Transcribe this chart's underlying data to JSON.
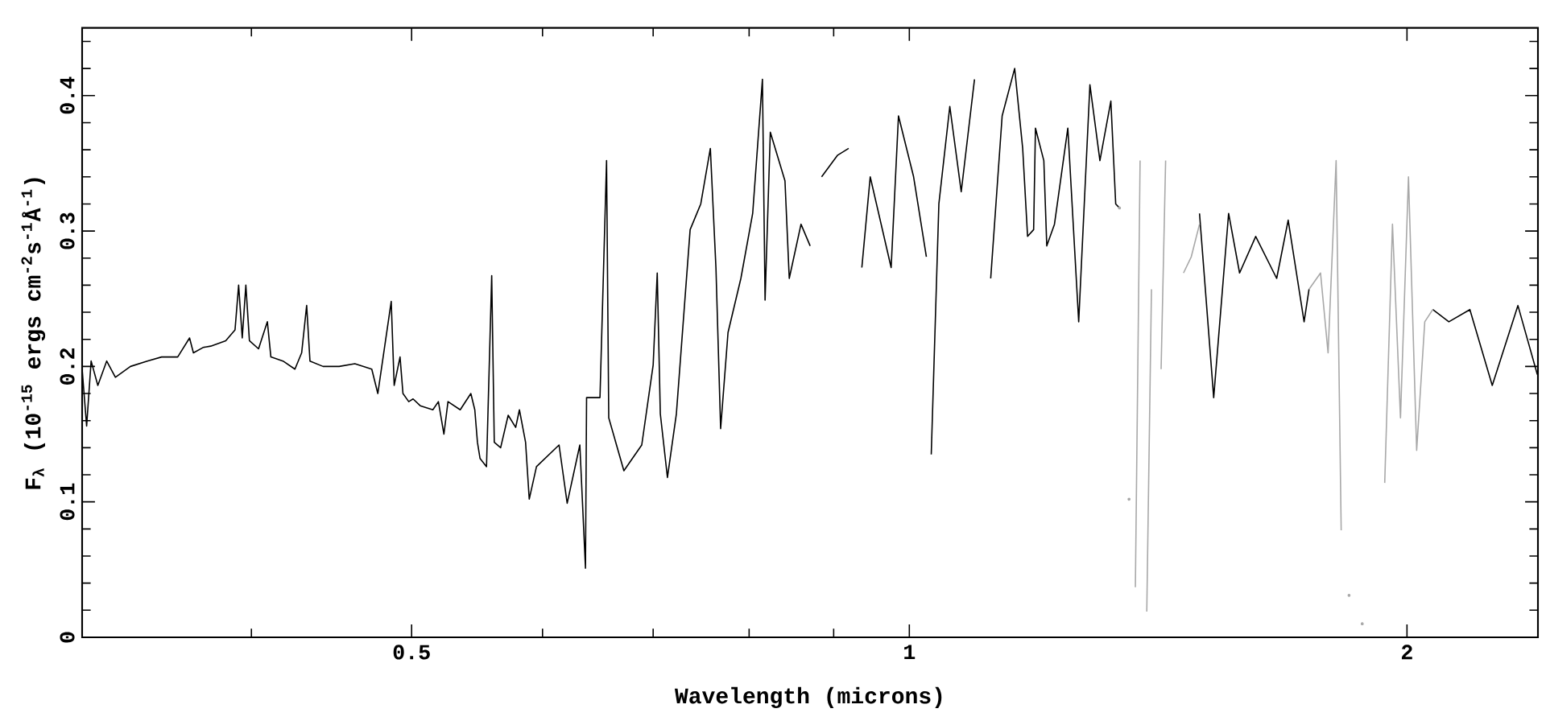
{
  "chart_data": {
    "type": "line",
    "xlabel": "Wavelength (microns)",
    "ylabel": "F$_{λ}$ (10$^{-15}$ ergs cm$^{-2}$s$^{-1}$Å$^{-1}$)",
    "log": "x",
    "xlim": [
      0.316,
      2.4
    ],
    "ylim": [
      0,
      0.45
    ],
    "xticks": [
      {
        "value": 0.4,
        "label": null
      },
      0.5,
      {
        "value": 0.6,
        "label": null
      },
      {
        "value": 0.7,
        "label": null
      },
      {
        "value": 0.8,
        "label": null
      },
      {
        "value": 0.9,
        "label": null
      },
      1,
      2
    ],
    "yticks": [
      0,
      {
        "value": 0.02,
        "label": null
      },
      {
        "value": 0.04,
        "label": null
      },
      {
        "value": 0.06,
        "label": null
      },
      {
        "value": 0.08,
        "label": null
      },
      0.1,
      {
        "value": 0.12,
        "label": null
      },
      {
        "value": 0.14,
        "label": null
      },
      {
        "value": 0.16,
        "label": null
      },
      {
        "value": 0.18,
        "label": null
      },
      0.2,
      {
        "value": 0.22,
        "label": null
      },
      {
        "value": 0.24,
        "label": null
      },
      {
        "value": 0.26,
        "label": null
      },
      {
        "value": 0.28,
        "label": null
      },
      0.3,
      {
        "value": 0.32,
        "label": null
      },
      {
        "value": 0.34,
        "label": null
      },
      {
        "value": 0.36,
        "label": null
      },
      {
        "value": 0.38,
        "label": null
      },
      0.4,
      {
        "value": 0.42,
        "label": null
      },
      {
        "value": 0.44,
        "label": null
      }
    ],
    "series": [
      {
        "color": "#000000",
        "x": [
          0.316,
          0.318,
          0.32,
          0.323,
          0.327,
          0.331,
          0.338,
          0.346,
          0.353,
          0.361,
          0.367,
          0.369,
          0.374,
          0.378,
          0.386,
          0.391,
          0.393,
          0.395,
          0.397,
          0.399,
          0.404,
          0.409,
          0.411,
          0.418,
          0.425,
          0.429,
          0.432,
          0.434,
          0.442,
          0.452,
          0.462,
          0.473,
          0.477,
          0.486,
          0.488,
          0.492,
          0.494,
          0.498,
          0.501,
          0.506,
          0.515,
          0.519,
          0.523,
          0.526,
          0.535,
          0.543,
          0.546,
          0.548,
          0.55,
          0.555,
          0.559,
          0.561,
          0.566,
          0.572,
          0.578,
          0.581,
          0.586,
          0.589,
          0.595,
          0.614,
          0.621,
          0.632,
          0.637,
          0.638,
          0.65,
          0.656,
          0.658,
          0.672,
          0.689,
          0.7,
          0.704,
          0.707,
          0.714,
          0.723,
          0.737,
          0.748,
          0.758,
          0.764,
          0.769,
          0.777,
          0.791,
          0.804,
          0.815,
          0.818,
          0.824,
          0.841,
          0.846,
          0.86,
          0.871,
          0.881,
          0.885,
          0.905,
          0.919,
          0.932,
          0.936,
          0.947,
          0.975,
          0.985,
          1.006,
          1.024,
          1.028,
          1.031,
          1.042,
          1.058,
          1.075,
          1.095,
          1.107,
          1.12,
          1.138,
          1.158,
          1.171,
          1.179,
          1.189,
          1.192,
          1.206,
          1.211,
          1.224,
          1.247,
          1.266,
          1.286,
          1.304,
          1.324,
          1.333,
          1.34,
          1.42,
          1.498,
          1.528,
          1.56,
          1.584,
          1.62,
          1.668,
          1.695,
          1.733,
          1.745,
          1.9,
          2.073,
          2.12,
          2.183,
          2.252,
          2.334,
          2.398
        ],
        "values": [
          0.198,
          0.156,
          0.204,
          0.186,
          0.204,
          0.192,
          0.2,
          0.204,
          0.207,
          0.207,
          0.221,
          0.21,
          0.214,
          0.215,
          0.219,
          0.227,
          0.26,
          0.221,
          0.26,
          0.219,
          0.213,
          0.233,
          0.207,
          0.204,
          0.198,
          0.21,
          0.245,
          0.204,
          0.2,
          0.2,
          0.202,
          0.198,
          0.18,
          0.248,
          0.186,
          0.207,
          0.18,
          0.174,
          0.176,
          0.171,
          0.168,
          0.174,
          0.15,
          0.174,
          0.168,
          0.18,
          0.168,
          0.144,
          0.132,
          0.126,
          0.267,
          0.144,
          0.14,
          0.164,
          0.155,
          0.168,
          0.144,
          0.102,
          0.126,
          0.142,
          0.099,
          0.142,
          0.051,
          0.177,
          0.177,
          0.352,
          0.162,
          0.123,
          0.142,
          0.201,
          0.269,
          0.165,
          0.118,
          0.165,
          0.301,
          0.32,
          0.361,
          0.273,
          0.154,
          0.225,
          0.265,
          0.313,
          0.412,
          0.249,
          0.373,
          0.337,
          0.265,
          0.305,
          0.289,
          null,
          0.34,
          0.356,
          0.361,
          null,
          0.273,
          0.34,
          0.273,
          0.385,
          0.34,
          0.281,
          null,
          0.135,
          0.32,
          0.392,
          0.329,
          0.412,
          null,
          0.265,
          0.385,
          0.42,
          0.361,
          0.296,
          0.301,
          0.376,
          0.352,
          0.289,
          0.305,
          0.376,
          0.233,
          0.408,
          0.352,
          0.396,
          0.32,
          0.317,
          null,
          0.313,
          0.177,
          0.313,
          0.269,
          0.296,
          0.265,
          0.308,
          0.233,
          0.257,
          null,
          0.242,
          0.233,
          0.242,
          0.186,
          0.245,
          0.194
        ]
      },
      {
        "color": "#a8a8a8",
        "x": [
          1.34,
          1.349,
          1.358,
          1.364,
          1.37,
          1.379,
          1.385,
          1.392,
          1.401,
          1.41,
          1.42,
          1.429,
          1.439,
          1.465,
          1.481,
          1.498,
          1.6,
          1.745,
          1.773,
          1.792,
          1.812,
          1.825,
          1.837,
          1.845,
          1.862,
          1.879,
          1.895,
          1.908,
          1.921,
          1.939,
          1.96,
          1.982,
          2.004,
          2.027,
          2.05,
          2.073
        ],
        "values": [
          0.317,
          null,
          0.102,
          null,
          0.037,
          0.352,
          null,
          0.019,
          0.257,
          null,
          0.198,
          0.352,
          null,
          0.269,
          0.281,
          0.305,
          null,
          0.257,
          0.269,
          0.21,
          0.352,
          0.079,
          null,
          0.031,
          null,
          0.01,
          null,
          null,
          null,
          0.114,
          0.305,
          0.162,
          0.34,
          0.138,
          0.233,
          0.242
        ]
      }
    ]
  }
}
